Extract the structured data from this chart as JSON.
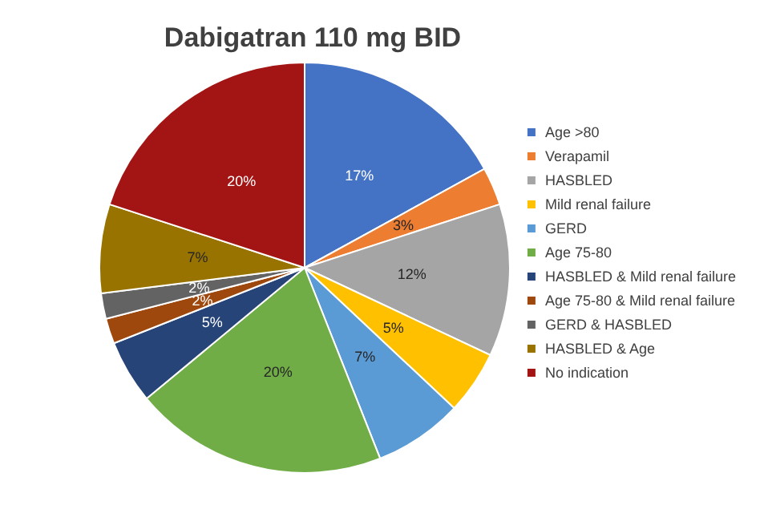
{
  "chart_data": {
    "type": "pie",
    "title": "Dabigatran 110 mg BID",
    "categories": [
      "Age >80",
      "Verapamil",
      "HASBLED",
      "Mild renal failure",
      "GERD",
      "Age 75-80",
      "HASBLED & Mild renal failure",
      "Age 75-80 & Mild renal failure",
      "GERD & HASBLED",
      "HASBLED & Age",
      "No indication"
    ],
    "values": [
      17,
      3,
      12,
      5,
      7,
      20,
      5,
      2,
      2,
      7,
      20
    ],
    "value_labels": [
      "17%",
      "3%",
      "12%",
      "5%",
      "7%",
      "20%",
      "5%",
      "2%",
      "2%",
      "7%",
      "20%"
    ],
    "colors": [
      "#4472c4",
      "#ed7d31",
      "#a5a5a5",
      "#ffc000",
      "#5b9bd5",
      "#70ad47",
      "#264478",
      "#9e480e",
      "#636363",
      "#997300",
      "#a31515"
    ],
    "legend": "right"
  }
}
